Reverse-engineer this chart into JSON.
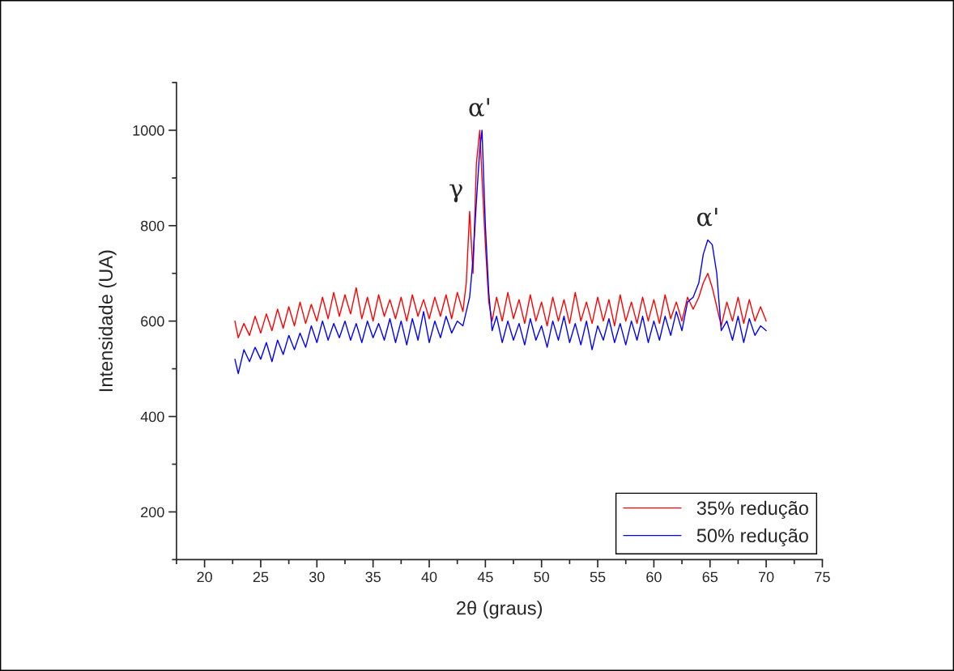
{
  "chart_data": {
    "type": "line",
    "xlabel": "2θ (graus)",
    "ylabel": "Intensidade (UA)",
    "xlim": [
      17.5,
      75
    ],
    "ylim": [
      100,
      1100
    ],
    "xticks": [
      {
        "value": 17.5,
        "label": null
      },
      20,
      {
        "value": 22.5,
        "label": null
      },
      25,
      {
        "value": 27.5,
        "label": null
      },
      30,
      {
        "value": 32.5,
        "label": null
      },
      35,
      {
        "value": 37.5,
        "label": null
      },
      40,
      {
        "value": 42.5,
        "label": null
      },
      45,
      {
        "value": 47.5,
        "label": null
      },
      50,
      {
        "value": 52.5,
        "label": null
      },
      55,
      {
        "value": 57.5,
        "label": null
      },
      60,
      {
        "value": 62.5,
        "label": null
      },
      65,
      {
        "value": 67.5,
        "label": null
      },
      70,
      {
        "value": 72.5,
        "label": null
      },
      75
    ],
    "yticks": [
      {
        "value": 100,
        "label": null
      },
      200,
      {
        "value": 300,
        "label": null
      },
      400,
      {
        "value": 500,
        "label": null
      },
      600,
      {
        "value": 700,
        "label": null
      },
      800,
      {
        "value": 900,
        "label": null
      },
      1000,
      {
        "value": 1100,
        "label": null
      }
    ],
    "x": [
      22.7,
      23.0,
      23.5,
      24,
      24.5,
      25,
      25.5,
      26,
      26.5,
      27,
      27.5,
      28,
      28.5,
      29,
      29.5,
      30,
      30.5,
      31,
      31.5,
      32,
      32.5,
      33,
      33.5,
      34,
      34.5,
      35,
      35.5,
      36,
      36.5,
      37,
      37.5,
      38,
      38.5,
      39,
      39.5,
      40,
      40.5,
      41,
      41.5,
      42,
      42.5,
      43,
      43.3,
      43.6,
      43.9,
      44.2,
      44.5,
      44.7,
      45.0,
      45.3,
      45.6,
      46,
      46.5,
      47,
      47.5,
      48,
      48.5,
      49,
      49.5,
      50,
      50.5,
      51,
      51.5,
      52,
      52.5,
      53,
      53.5,
      54,
      54.5,
      55,
      55.5,
      56,
      56.5,
      57,
      57.5,
      58,
      58.5,
      59,
      59.5,
      60,
      60.5,
      61,
      61.5,
      62,
      62.5,
      63,
      63.5,
      64.0,
      64.4,
      64.8,
      65.2,
      65.6,
      66.0,
      66.5,
      67,
      67.5,
      68,
      68.5,
      69,
      69.5,
      70
    ],
    "series": [
      {
        "name": "35% redução",
        "color": "#ff0000",
        "values": [
          600,
          565,
          595,
          570,
          610,
          575,
          615,
          580,
          625,
          585,
          630,
          590,
          640,
          595,
          635,
          600,
          650,
          605,
          660,
          610,
          655,
          615,
          670,
          605,
          650,
          600,
          655,
          610,
          645,
          605,
          650,
          600,
          655,
          610,
          645,
          605,
          650,
          610,
          655,
          605,
          660,
          620,
          680,
          830,
          700,
          930,
          1000,
          900,
          760,
          640,
          600,
          650,
          600,
          660,
          605,
          645,
          595,
          655,
          600,
          640,
          590,
          650,
          600,
          645,
          595,
          660,
          600,
          640,
          595,
          650,
          600,
          645,
          590,
          655,
          600,
          640,
          595,
          650,
          600,
          645,
          595,
          655,
          605,
          640,
          600,
          650,
          625,
          650,
          680,
          700,
          670,
          630,
          590,
          640,
          600,
          650,
          595,
          645,
          600,
          630,
          600
        ]
      },
      {
        "name": "50% redução",
        "color": "#0000ff",
        "values": [
          520,
          490,
          540,
          515,
          545,
          520,
          555,
          515,
          560,
          530,
          570,
          540,
          575,
          545,
          590,
          555,
          600,
          560,
          595,
          565,
          600,
          560,
          595,
          555,
          600,
          565,
          595,
          560,
          605,
          555,
          600,
          550,
          605,
          560,
          620,
          555,
          600,
          565,
          610,
          575,
          600,
          590,
          620,
          650,
          730,
          850,
          960,
          1000,
          800,
          660,
          580,
          610,
          555,
          600,
          560,
          595,
          550,
          605,
          560,
          590,
          545,
          600,
          560,
          610,
          555,
          595,
          550,
          600,
          540,
          590,
          560,
          605,
          555,
          595,
          550,
          600,
          560,
          610,
          555,
          600,
          560,
          610,
          570,
          620,
          580,
          640,
          650,
          680,
          740,
          770,
          760,
          700,
          580,
          600,
          560,
          610,
          555,
          605,
          570,
          590,
          580
        ]
      }
    ],
    "annotations": [
      {
        "text": "γ",
        "x": 43.6,
        "y": 830
      },
      {
        "text": "α'",
        "x": 44.5,
        "y": 1000
      },
      {
        "text": "α'",
        "x": 64.8,
        "y": 770
      }
    ],
    "legend": "bottom right",
    "line_style": "solid",
    "marker": "none",
    "grid": false
  }
}
